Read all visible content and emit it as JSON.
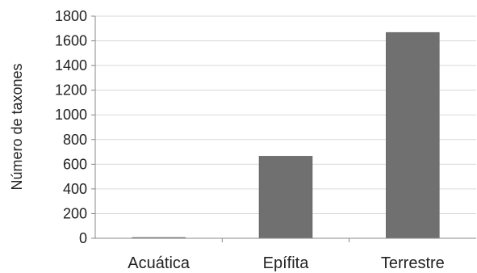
{
  "colors": {
    "bar": "#707070",
    "grid": "#d9d9d9",
    "axis": "#888888"
  },
  "chart_data": {
    "type": "bar",
    "categories": [
      "Acuática",
      "Epífita",
      "Terrestre"
    ],
    "values": [
      5,
      665,
      1668
    ],
    "ylabel": "Número de taxones",
    "ylim": [
      0,
      1800
    ],
    "yticks": [
      0,
      200,
      400,
      600,
      800,
      1000,
      1200,
      1400,
      1600,
      1800
    ],
    "grid": true
  }
}
